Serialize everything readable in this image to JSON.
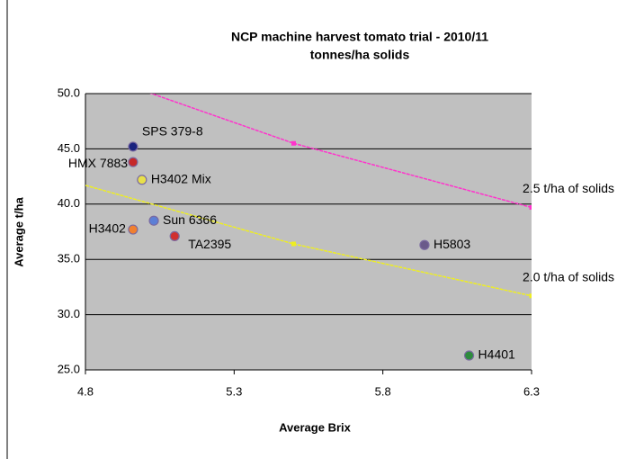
{
  "chart_data": {
    "type": "scatter",
    "title": "NCP machine harvest tomato trial - 2010/11",
    "subtitle": "tonnes/ha solids",
    "x_label": "Average Brix",
    "y_label": "Average t/ha",
    "xlim": [
      4.8,
      6.3
    ],
    "xticks": [
      4.8,
      5.3,
      5.8,
      6.3
    ],
    "ylim": [
      25,
      50
    ],
    "yticks": [
      {
        "value": 25,
        "label": "25.0"
      },
      {
        "value": 30,
        "label": "30.0"
      },
      {
        "value": 35,
        "label": "35.0"
      },
      {
        "value": 40,
        "label": "40.0"
      },
      {
        "value": 45,
        "label": "45.0"
      },
      {
        "value": 50,
        "label": "50.0"
      }
    ],
    "grid": true,
    "points": {
      "labels": [
        "SPS 379-8",
        "HMX 7883",
        "H3402 Mix",
        "Sun 6366",
        "H3402",
        "TA2395",
        "H5803",
        "H4401"
      ],
      "x": [
        4.96,
        4.96,
        4.99,
        5.03,
        4.96,
        5.1,
        5.94,
        6.09
      ],
      "y": [
        45.2,
        43.8,
        42.2,
        38.5,
        37.7,
        37.1,
        36.3,
        26.3
      ],
      "colors": [
        "#1a237e",
        "#c62828",
        "#e8e04a",
        "#5c7fd6",
        "#f08030",
        "#d03030",
        "#6a5a8a",
        "#2e8b3e"
      ]
    },
    "lines": [
      {
        "name": "2.5 t/ha of solids",
        "color": "#ff33cc",
        "x": [
          4.8,
          5.5,
          6.3
        ],
        "values": [
          52.1,
          45.5,
          39.7
        ]
      },
      {
        "name": "2.0 t/ha of solids",
        "color": "#eeee22",
        "x": [
          4.8,
          5.5,
          6.3
        ],
        "values": [
          41.7,
          36.4,
          31.7
        ]
      }
    ]
  }
}
